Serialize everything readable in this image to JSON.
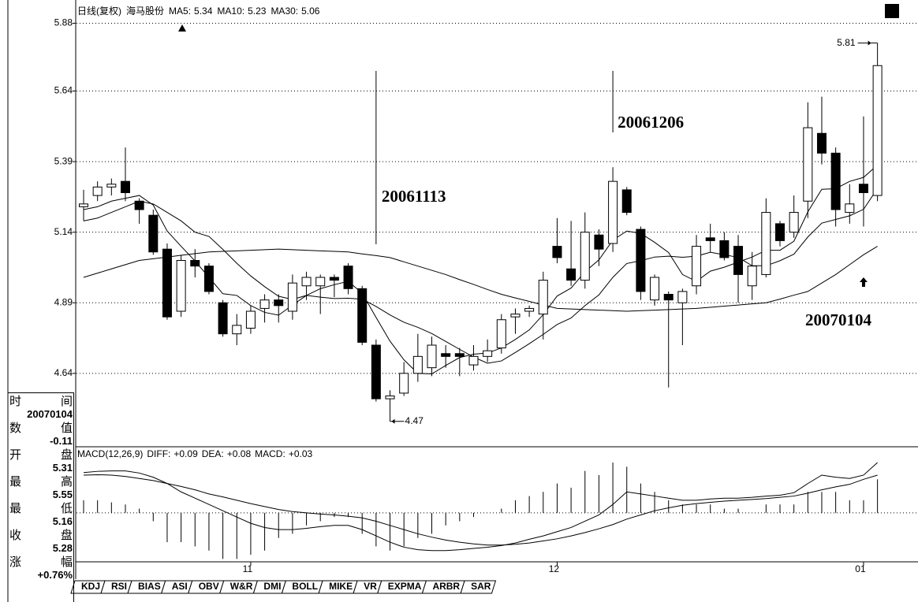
{
  "chart_data": [
    {
      "type": "candlestick",
      "title": "日线(复权)",
      "subtitle": "海马股份",
      "open": [
        5.23,
        5.27,
        5.3,
        5.32,
        5.25,
        5.2,
        5.08,
        4.86,
        5.04,
        5.02,
        4.89,
        4.78,
        4.8,
        4.87,
        4.9,
        4.86,
        4.95,
        4.95,
        4.98,
        5.02,
        4.94,
        4.74,
        4.55,
        4.57,
        4.64,
        4.66,
        4.71,
        4.71,
        4.67,
        4.7,
        4.73,
        4.84,
        4.86,
        4.85,
        5.09,
        5.01,
        4.97,
        5.13,
        5.1,
        5.29,
        5.15,
        4.9,
        4.92,
        4.89,
        4.95,
        5.12,
        5.11,
        5.09,
        4.95,
        4.99,
        5.17,
        5.14,
        5.25,
        5.49,
        5.42,
        5.21,
        5.31,
        5.27
      ],
      "high": [
        5.29,
        5.32,
        5.33,
        5.44,
        5.26,
        5.22,
        5.1,
        5.06,
        5.08,
        5.03,
        4.9,
        4.85,
        4.88,
        4.92,
        4.92,
        4.99,
        5.0,
        4.99,
        4.99,
        5.03,
        4.95,
        4.76,
        4.58,
        4.68,
        4.78,
        4.77,
        4.74,
        4.73,
        4.74,
        4.76,
        4.85,
        4.87,
        4.88,
        5.0,
        5.19,
        5.18,
        5.21,
        5.15,
        5.37,
        5.3,
        5.16,
        4.99,
        4.93,
        4.94,
        5.13,
        5.17,
        5.14,
        5.13,
        5.07,
        5.26,
        5.18,
        5.27,
        5.6,
        5.62,
        5.44,
        5.31,
        5.55,
        5.81
      ],
      "low": [
        5.18,
        5.25,
        5.27,
        5.25,
        5.17,
        5.06,
        4.83,
        4.84,
        4.98,
        4.92,
        4.77,
        4.74,
        4.78,
        4.82,
        4.82,
        4.83,
        4.9,
        4.85,
        4.91,
        4.92,
        4.74,
        4.54,
        4.47,
        4.56,
        4.61,
        4.63,
        4.66,
        4.63,
        4.65,
        4.68,
        4.71,
        4.78,
        4.84,
        4.76,
        5.03,
        4.95,
        4.94,
        5.02,
        5.07,
        5.2,
        4.9,
        4.88,
        4.59,
        4.74,
        4.92,
        5.07,
        5.04,
        4.89,
        4.9,
        4.98,
        5.09,
        5.12,
        5.19,
        5.38,
        5.16,
        5.17,
        5.16,
        5.25
      ],
      "close": [
        5.24,
        5.3,
        5.31,
        5.28,
        5.22,
        5.07,
        4.84,
        5.04,
        5.02,
        4.93,
        4.78,
        4.81,
        4.86,
        4.9,
        4.88,
        4.96,
        4.98,
        4.98,
        4.97,
        4.94,
        4.75,
        4.55,
        4.56,
        4.64,
        4.7,
        4.74,
        4.7,
        4.7,
        4.7,
        4.72,
        4.83,
        4.85,
        4.87,
        4.97,
        5.05,
        4.97,
        5.14,
        5.08,
        5.32,
        5.21,
        4.93,
        4.98,
        4.9,
        4.93,
        5.09,
        5.11,
        5.05,
        4.99,
        5.02,
        5.21,
        5.11,
        5.21,
        5.51,
        5.42,
        5.22,
        5.24,
        5.28,
        5.73
      ],
      "up_color": "#ffffff",
      "down_color": "#000000",
      "series": [
        {
          "name": "MA5:",
          "last": 5.34,
          "color": "#000000",
          "values": [
            5.22,
            5.23,
            5.25,
            5.26,
            5.27,
            5.236,
            5.144,
            5.09,
            5.038,
            4.98,
            4.922,
            4.916,
            4.88,
            4.856,
            4.846,
            4.882,
            4.916,
            4.94,
            4.954,
            4.966,
            4.924,
            4.838,
            4.754,
            4.688,
            4.64,
            4.638,
            4.668,
            4.696,
            4.708,
            4.712,
            4.73,
            4.76,
            4.794,
            4.848,
            4.914,
            4.942,
            5.0,
            5.042,
            5.112,
            5.144,
            5.136,
            5.104,
            5.068,
            4.99,
            4.966,
            5.002,
            5.016,
            5.034,
            5.052,
            5.076,
            5.076,
            5.108,
            5.212,
            5.292,
            5.294,
            5.32,
            5.334,
            5.378
          ]
        },
        {
          "name": "MA10:",
          "last": 5.23,
          "color": "#000000",
          "values": [
            5.18,
            5.19,
            5.21,
            5.23,
            5.25,
            5.24,
            5.21,
            5.18,
            5.14,
            5.125,
            5.079,
            5.03,
            4.985,
            4.947,
            4.913,
            4.902,
            4.916,
            4.91,
            4.905,
            4.906,
            4.903,
            4.877,
            4.847,
            4.821,
            4.803,
            4.781,
            4.753,
            4.725,
            4.698,
            4.676,
            4.684,
            4.714,
            4.745,
            4.778,
            4.813,
            4.836,
            4.88,
            4.918,
            4.98,
            5.029,
            5.039,
            5.052,
            5.055,
            5.051,
            5.055,
            5.069,
            5.06,
            5.051,
            5.021,
            5.021,
            5.039,
            5.062,
            5.123,
            5.172,
            5.185,
            5.198,
            5.221,
            5.295
          ]
        },
        {
          "name": "MA30:",
          "last": 5.06,
          "color": "#000000",
          "values": [
            4.98,
            4.995,
            5.01,
            5.025,
            5.04,
            5.046,
            5.052,
            5.058,
            5.064,
            5.07,
            5.072,
            5.074,
            5.076,
            5.078,
            5.08,
            5.078,
            5.076,
            5.074,
            5.072,
            5.07,
            5.063,
            5.057,
            5.05,
            5.035,
            5.02,
            5.005,
            4.99,
            4.972,
            4.955,
            4.937,
            4.92,
            4.907,
            4.895,
            4.882,
            4.87,
            4.868,
            4.866,
            4.864,
            4.862,
            4.86,
            4.862,
            4.864,
            4.866,
            4.868,
            4.87,
            4.874,
            4.878,
            4.882,
            4.886,
            4.89,
            4.903,
            4.917,
            4.93,
            4.96,
            4.99,
            5.025,
            5.06,
            5.09
          ]
        }
      ],
      "ylim": [
        4.38,
        5.94
      ],
      "yticks": [
        5.88,
        5.64,
        5.39,
        5.14,
        4.89,
        4.64
      ],
      "grid": true,
      "highest": 5.81,
      "lowest": 4.47,
      "annotations": [
        null,
        null,
        null,
        null,
        null,
        null,
        null,
        null,
        null,
        null,
        null,
        null,
        null,
        null,
        null,
        null,
        null,
        null,
        null,
        null,
        null,
        "20061113",
        null,
        null,
        null,
        null,
        null,
        null,
        null,
        null,
        null,
        null,
        null,
        null,
        null,
        null,
        null,
        null,
        "20061206",
        null,
        null,
        null,
        null,
        null,
        null,
        null,
        null,
        null,
        null,
        null,
        null,
        null,
        null,
        null,
        null,
        null,
        "20070104",
        null
      ]
    },
    {
      "type": "macd",
      "title": "MACD(12,26,9)",
      "categories": [
        null,
        null,
        null,
        null,
        null,
        null,
        null,
        null,
        null,
        null,
        null,
        null,
        "11",
        null,
        null,
        null,
        null,
        null,
        null,
        null,
        null,
        null,
        null,
        null,
        null,
        null,
        null,
        null,
        null,
        null,
        null,
        null,
        null,
        null,
        "12",
        null,
        null,
        null,
        null,
        null,
        null,
        null,
        null,
        null,
        null,
        null,
        null,
        null,
        null,
        null,
        null,
        null,
        null,
        null,
        null,
        null,
        "01",
        null
      ],
      "series": [
        {
          "name": "DIFF:",
          "last": "+0.09",
          "color": "#000000",
          "values": [
            0.096,
            0.099,
            0.1,
            0.1,
            0.095,
            0.085,
            0.07,
            0.05,
            0.035,
            0.02,
            0.005,
            -0.01,
            -0.025,
            -0.035,
            -0.04,
            -0.04,
            -0.037,
            -0.033,
            -0.03,
            -0.03,
            -0.04,
            -0.055,
            -0.07,
            -0.082,
            -0.088,
            -0.09,
            -0.09,
            -0.088,
            -0.085,
            -0.082,
            -0.078,
            -0.072,
            -0.063,
            -0.055,
            -0.045,
            -0.035,
            -0.02,
            -0.005,
            0.02,
            0.05,
            0.045,
            0.04,
            0.035,
            0.03,
            0.03,
            0.033,
            0.035,
            0.035,
            0.037,
            0.04,
            0.042,
            0.048,
            0.07,
            0.09,
            0.085,
            0.082,
            0.09,
            0.12
          ]
        },
        {
          "name": "DEA:",
          "last": "+0.08",
          "color": "#000000",
          "values": [
            0.09,
            0.091,
            0.09,
            0.087,
            0.082,
            0.077,
            0.07,
            0.063,
            0.055,
            0.045,
            0.038,
            0.03,
            0.022,
            0.015,
            0.008,
            0.003,
            0.0,
            -0.003,
            -0.005,
            -0.008,
            -0.012,
            -0.02,
            -0.03,
            -0.04,
            -0.05,
            -0.058,
            -0.065,
            -0.07,
            -0.074,
            -0.077,
            -0.077,
            -0.075,
            -0.072,
            -0.067,
            -0.062,
            -0.055,
            -0.047,
            -0.038,
            -0.028,
            -0.015,
            -0.005,
            0.005,
            0.012,
            0.018,
            0.022,
            0.025,
            0.028,
            0.03,
            0.032,
            0.034,
            0.037,
            0.04,
            0.047,
            0.055,
            0.062,
            0.068,
            0.08,
            0.09
          ]
        }
      ],
      "histogram": {
        "name": "MACD:",
        "last": "+0.03",
        "color": "#000000",
        "values": [
          0.03,
          0.03,
          0.025,
          0.02,
          0.01,
          -0.02,
          -0.07,
          -0.07,
          -0.08,
          -0.09,
          -0.11,
          -0.11,
          -0.1,
          -0.09,
          -0.06,
          -0.05,
          -0.03,
          -0.02,
          -0.01,
          -0.01,
          -0.05,
          -0.08,
          -0.09,
          -0.08,
          -0.06,
          -0.05,
          -0.03,
          -0.02,
          -0.01,
          0.0,
          0.01,
          0.03,
          0.04,
          0.05,
          0.07,
          0.06,
          0.1,
          0.09,
          0.12,
          0.11,
          0.07,
          0.05,
          0.03,
          0.02,
          0.02,
          0.02,
          0.01,
          0.01,
          0.0,
          0.02,
          0.02,
          0.02,
          0.05,
          0.05,
          0.05,
          0.03,
          0.03,
          0.08
        ]
      },
      "ylim": [
        -0.115,
        0.152
      ],
      "zero_line": true
    }
  ],
  "info_panel": {
    "rows": [
      {
        "label": "时间",
        "value": "20070104"
      },
      {
        "label": "数值",
        "value": -0.11
      },
      {
        "label": "开盘",
        "value": 5.31
      },
      {
        "label": "最高",
        "value": 5.55
      },
      {
        "label": "最低",
        "value": 5.16
      },
      {
        "label": "收盘",
        "value": 5.28
      },
      {
        "label": "涨幅",
        "value": "+0.76%"
      }
    ]
  },
  "tabs": [
    "KDJ",
    "RSI",
    "BIAS",
    "ASI",
    "OBV",
    "W&R",
    "DMI",
    "BOLL",
    "MIKE",
    "VR",
    "EXPMA",
    "ARBR",
    "SAR"
  ]
}
